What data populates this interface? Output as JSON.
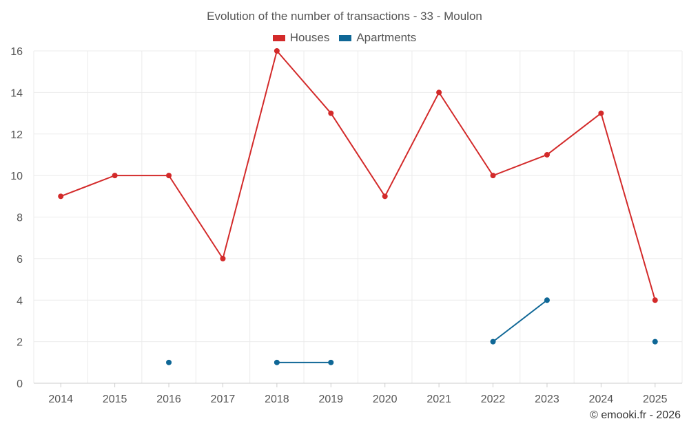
{
  "chart_data": {
    "type": "line",
    "title": "Evolution of the number of transactions - 33 - Moulon",
    "categories": [
      "2014",
      "2015",
      "2016",
      "2017",
      "2018",
      "2019",
      "2020",
      "2021",
      "2022",
      "2023",
      "2024",
      "2025"
    ],
    "series": [
      {
        "name": "Houses",
        "color": "#d32a2a",
        "values": [
          9,
          10,
          10,
          6,
          16,
          13,
          9,
          14,
          10,
          11,
          13,
          4
        ]
      },
      {
        "name": "Apartments",
        "color": "#0f6796",
        "values": [
          null,
          null,
          1,
          null,
          1,
          1,
          null,
          null,
          2,
          4,
          null,
          2
        ]
      }
    ],
    "yticks": [
      0,
      2,
      4,
      6,
      8,
      10,
      12,
      14,
      16
    ],
    "ylim": [
      0,
      16
    ],
    "xlabel": "",
    "ylabel": "",
    "grid": true,
    "legend_position": "top-center"
  },
  "credit": "© emooki.fr - 2026"
}
